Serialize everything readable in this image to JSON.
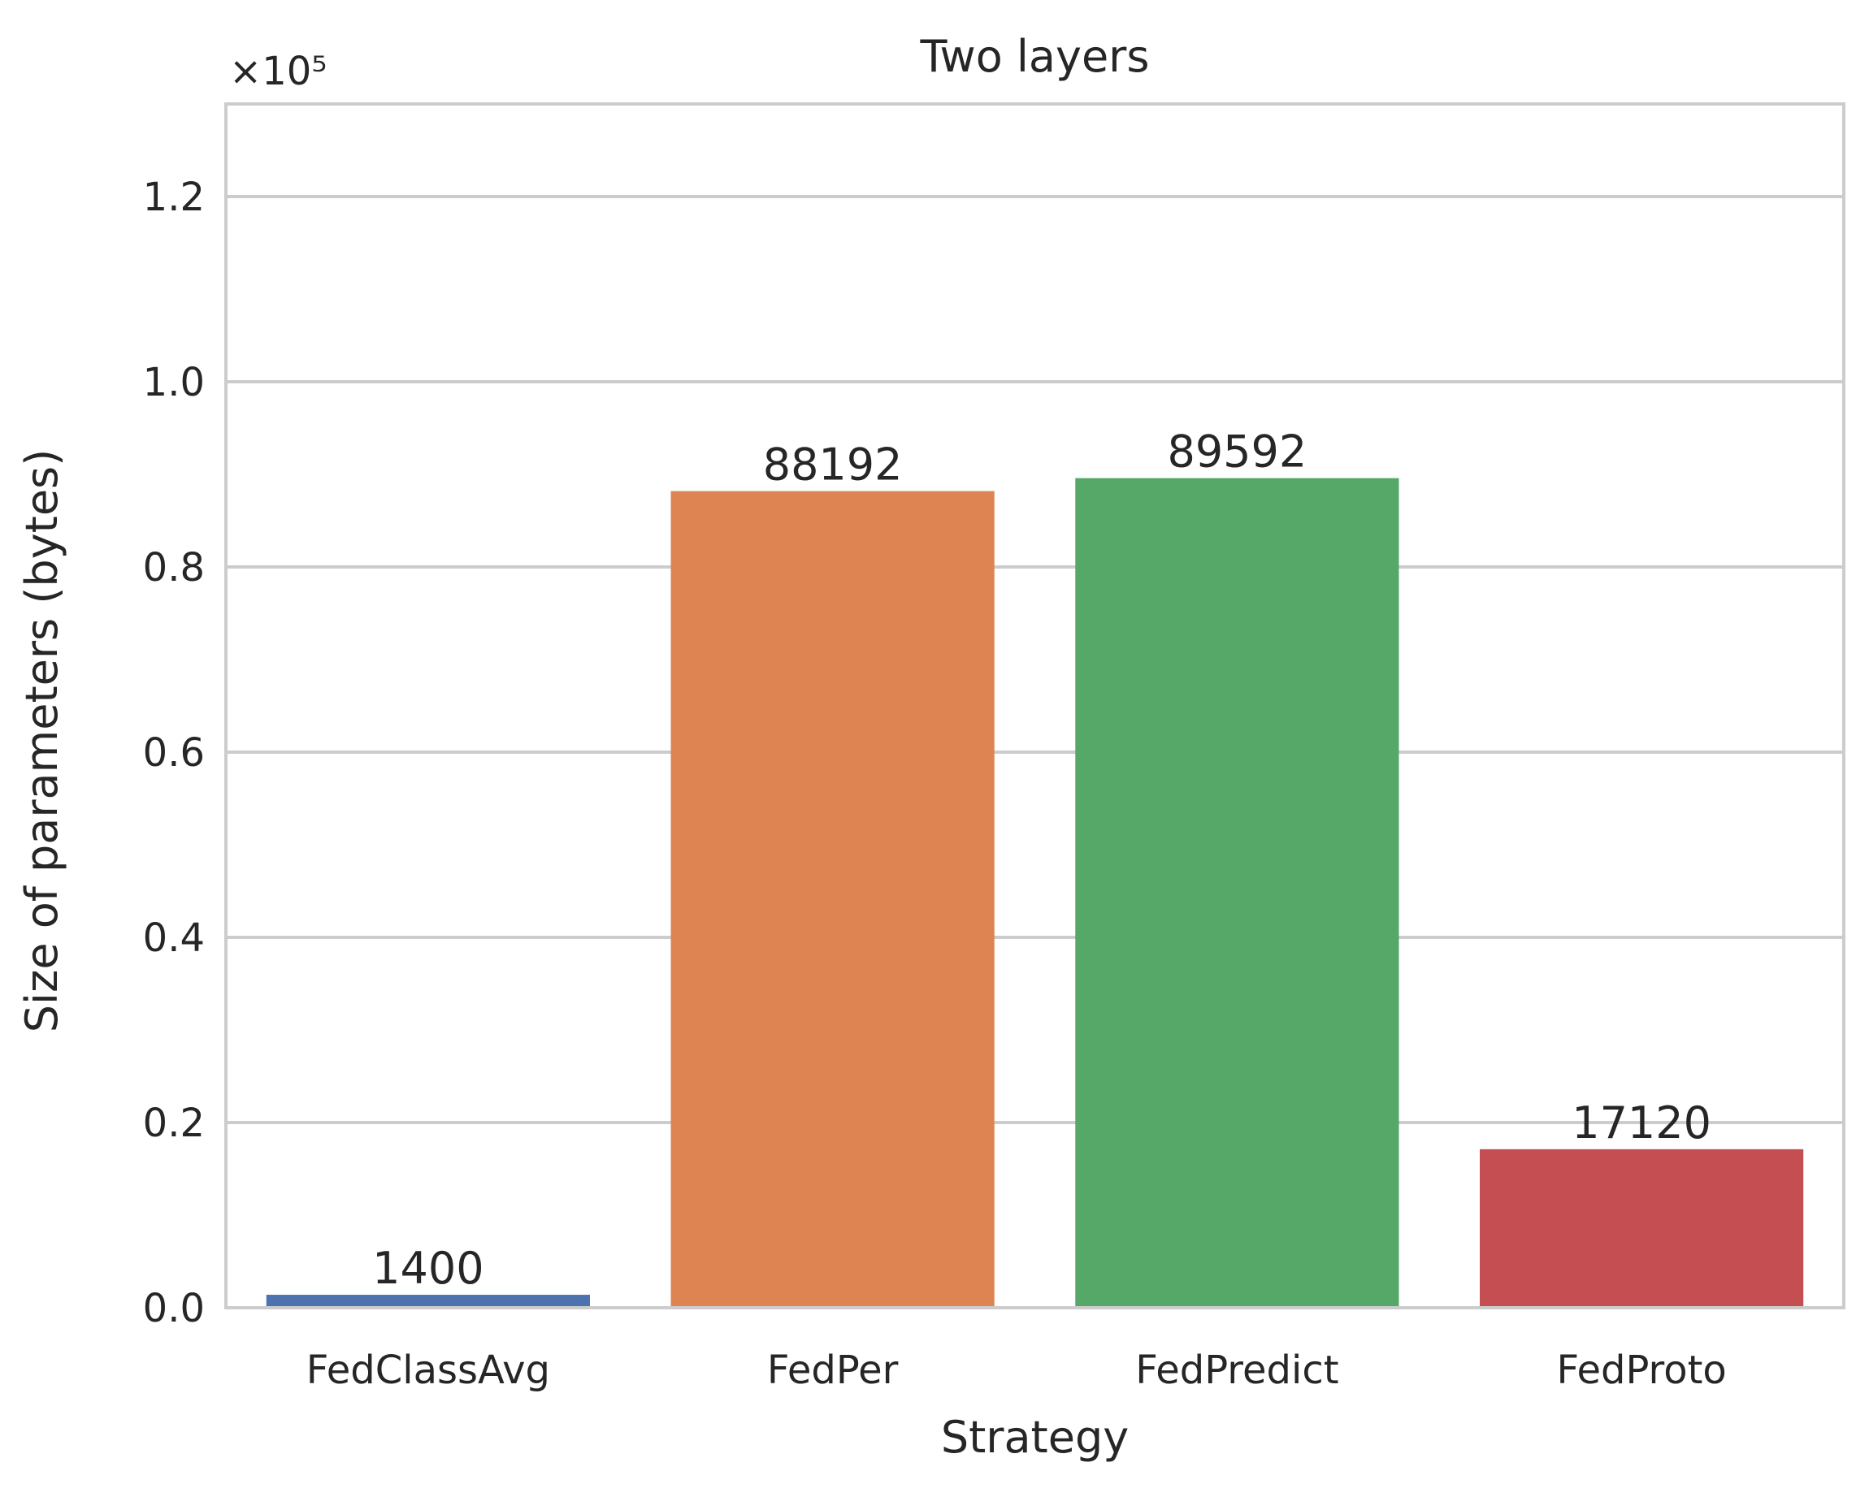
{
  "chart_data": {
    "type": "bar",
    "title": "Two layers",
    "xlabel": "Strategy",
    "ylabel": "Size of parameters (bytes)",
    "offset_text": "×10⁵",
    "categories": [
      "FedClassAvg",
      "FedPer",
      "FedPredict",
      "FedProto"
    ],
    "values": [
      1400,
      88192,
      89592,
      17120
    ],
    "data_labels": [
      "1400",
      "88192",
      "89592",
      "17120"
    ],
    "colors": [
      "#4c72b0",
      "#dd8452",
      "#55a868",
      "#c44e52"
    ],
    "ylim": [
      0,
      130000
    ],
    "yticks": [
      0,
      20000,
      40000,
      60000,
      80000,
      100000,
      120000
    ],
    "ytick_labels": [
      "0.0",
      "0.2",
      "0.4",
      "0.6",
      "0.8",
      "1.0",
      "1.2"
    ],
    "grid": "horizontal",
    "legend": "none"
  }
}
